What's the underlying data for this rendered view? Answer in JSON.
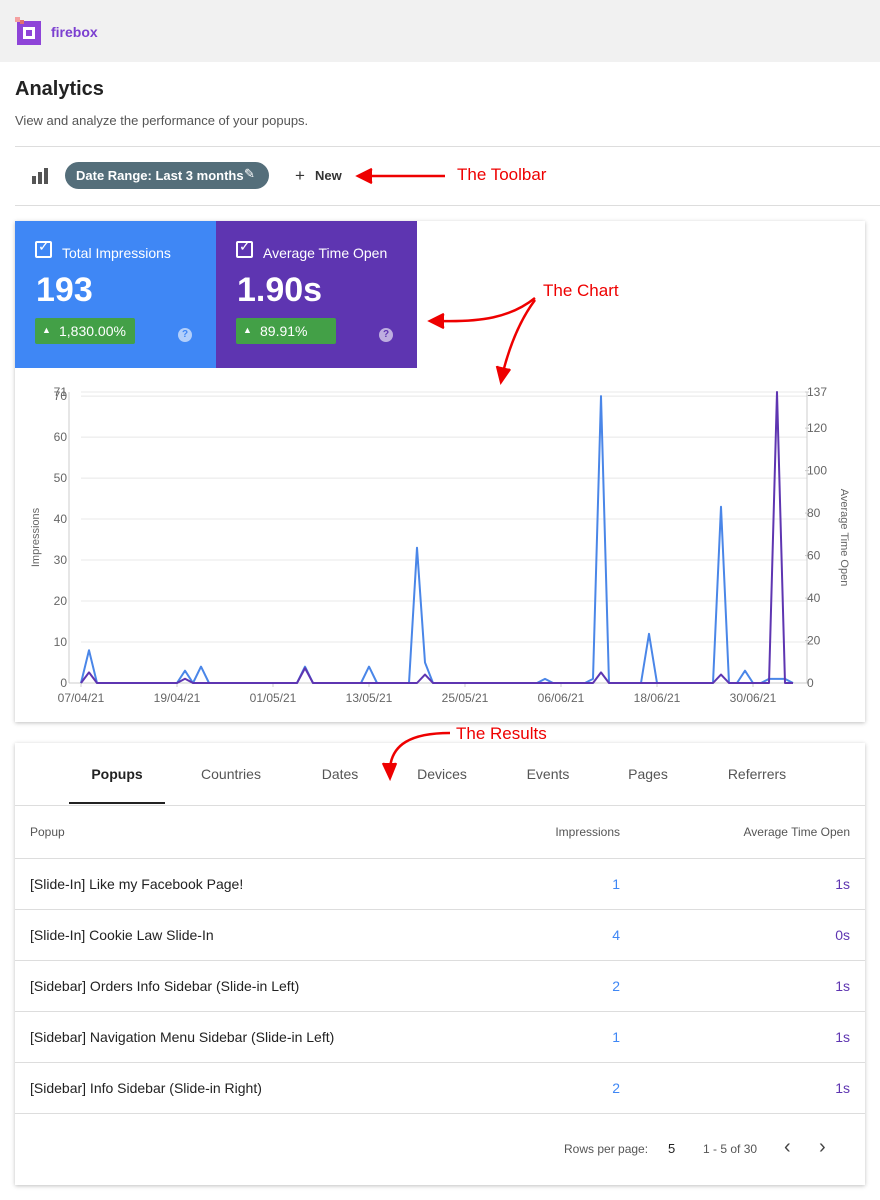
{
  "header": {
    "brand": "firebox"
  },
  "page": {
    "title": "Analytics",
    "subtitle": "View and analyze the performance of your popups."
  },
  "toolbar": {
    "date_range": "Date Range: Last 3 months",
    "new_button": "New"
  },
  "annotations": {
    "toolbar": "The Toolbar",
    "chart": "The Chart",
    "results": "The Results"
  },
  "metrics": [
    {
      "label": "Total Impressions",
      "value": "193",
      "change": "1,830.00%",
      "color": "#3f87f5"
    },
    {
      "label": "Average Time Open",
      "value": "1.90s",
      "change": "89.91%",
      "color": "#5e35b1"
    }
  ],
  "chart": {
    "type": "line",
    "ylabel": "Impressions",
    "y2label": "Average Time Open",
    "x": [
      "07/04/21",
      "08/04/21",
      "09/04/21",
      "19/04/21",
      "20/04/21",
      "21/04/21",
      "22/04/21",
      "23/04/21",
      "04/05/21",
      "05/05/21",
      "06/05/21",
      "12/05/21",
      "13/05/21",
      "14/05/21",
      "18/05/21",
      "19/05/21",
      "20/05/21",
      "21/05/21",
      "03/06/21",
      "04/06/21",
      "05/06/21",
      "09/06/21",
      "10/06/21",
      "11/06/21",
      "12/06/21",
      "16/06/21",
      "17/06/21",
      "18/06/21",
      "25/06/21",
      "26/06/21",
      "27/06/21",
      "28/06/21",
      "29/06/21",
      "30/06/21",
      "01/07/21",
      "02/07/21",
      "03/07/21",
      "04/07/21",
      "05/07/21"
    ],
    "xticks": [
      "07/04/21",
      "19/04/21",
      "01/05/21",
      "13/05/21",
      "25/05/21",
      "06/06/21",
      "18/06/21",
      "30/06/21"
    ],
    "ylim": [
      0,
      71
    ],
    "yticks": [
      0,
      10,
      20,
      30,
      40,
      50,
      60,
      70,
      71
    ],
    "y2lim": [
      0,
      137
    ],
    "y2ticks": [
      0,
      20,
      40,
      60,
      80,
      100,
      120,
      137
    ],
    "grid": true,
    "series": [
      {
        "name": "Impressions",
        "color": "#4a86e8",
        "values": [
          0,
          8,
          0,
          0,
          3,
          0,
          4,
          0,
          0,
          4,
          0,
          0,
          4,
          0,
          0,
          33,
          5,
          0,
          0,
          1,
          0,
          0,
          1,
          70,
          0,
          0,
          12,
          0,
          0,
          43,
          0,
          0,
          3,
          0,
          0,
          1,
          1,
          1,
          0
        ]
      },
      {
        "name": "Average Time Open",
        "color": "#5e35b1",
        "axis": "y2",
        "values": [
          0,
          5,
          0,
          0,
          2,
          0,
          0,
          0,
          0,
          7,
          0,
          0,
          0,
          0,
          0,
          0,
          4,
          0,
          0,
          0,
          0,
          0,
          0,
          5,
          0,
          0,
          0,
          0,
          0,
          4,
          0,
          0,
          0,
          0,
          0,
          0,
          137,
          0,
          0
        ]
      }
    ]
  },
  "results": {
    "tabs": [
      "Popups",
      "Countries",
      "Dates",
      "Devices",
      "Events",
      "Pages",
      "Referrers"
    ],
    "table": {
      "columns": [
        "Popup",
        "Impressions",
        "Average Time Open"
      ],
      "rows": [
        [
          "[Slide-In] Like my Facebook Page!",
          "1",
          "1s"
        ],
        [
          "[Slide-In] Cookie Law Slide-In",
          "4",
          "0s"
        ],
        [
          "[Sidebar] Orders Info Sidebar (Slide-in Left)",
          "2",
          "1s"
        ],
        [
          "[Sidebar] Navigation Menu Sidebar (Slide-in Left)",
          "1",
          "1s"
        ],
        [
          "[Sidebar] Info Sidebar (Slide-in Right)",
          "2",
          "1s"
        ]
      ]
    },
    "pagination": {
      "rows_per_page_label": "Rows per page:",
      "rows_per_page": "5",
      "range": "1 - 5 of 30"
    }
  }
}
